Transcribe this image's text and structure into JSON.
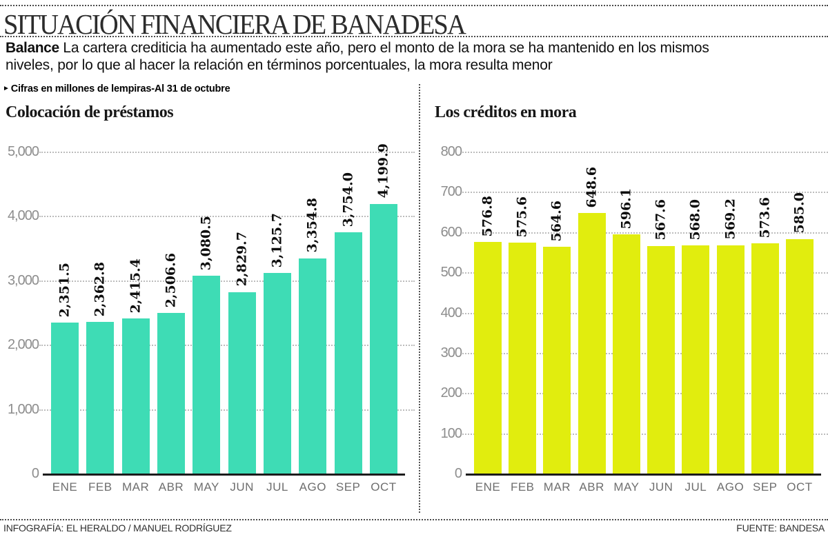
{
  "header": {
    "title": "SITUACIÓN FINANCIERA DE BANADESA",
    "lead_label": "Balance",
    "lead_text": "La cartera crediticia ha aumentado este año, pero el monto de la mora se ha mantenido en los mismos niveles, por lo que al hacer la relación en términos porcentuales, la mora resulta menor",
    "bullet_arrow": "►",
    "note": "Cifras en millones de lempiras-Al 31 de octubre"
  },
  "chart_data": [
    {
      "type": "bar",
      "title": "Colocación de préstamos",
      "categories": [
        "ENE",
        "FEB",
        "MAR",
        "ABR",
        "MAY",
        "JUN",
        "JUL",
        "AGO",
        "SEP",
        "OCT"
      ],
      "values": [
        2351.5,
        2362.8,
        2415.4,
        2506.6,
        3080.5,
        2829.7,
        3125.7,
        3354.8,
        3754.0,
        4199.9
      ],
      "labels": [
        "2,351.5",
        "2,362.8",
        "2,415.4",
        "2,506.6",
        "3,080.5",
        "2,829.7",
        "3,125.7",
        "3,354.8",
        "3,754.0",
        "4,199.9"
      ],
      "ylim": [
        0,
        5000
      ],
      "yticks": [
        0,
        1000,
        2000,
        3000,
        4000,
        5000
      ],
      "ytick_labels": [
        "0",
        "1,000",
        "2,000",
        "3,000",
        "4,000",
        "5,000"
      ],
      "bar_color": "#3EDCB5",
      "grid": true,
      "legend": "none"
    },
    {
      "type": "bar",
      "title": "Los créditos en mora",
      "categories": [
        "ENE",
        "FEB",
        "MAR",
        "ABR",
        "MAY",
        "JUN",
        "JUL",
        "AGO",
        "SEP",
        "OCT"
      ],
      "values": [
        576.8,
        575.6,
        564.6,
        648.6,
        596.1,
        567.6,
        568.0,
        569.2,
        573.6,
        585.0
      ],
      "labels": [
        "576.8",
        "575.6",
        "564.6",
        "648.6",
        "596.1",
        "567.6",
        "568.0",
        "569.2",
        "573.6",
        "585.0"
      ],
      "ylim": [
        0,
        800
      ],
      "yticks": [
        0,
        100,
        200,
        300,
        400,
        500,
        600,
        700,
        800
      ],
      "ytick_labels": [
        "0",
        "100",
        "200",
        "300",
        "400",
        "500",
        "600",
        "700",
        "800"
      ],
      "bar_color": "#E1ED0E",
      "grid": true,
      "legend": "none"
    }
  ],
  "footer": {
    "credit": "INFOGRAFÍA: EL HERALDO / MANUEL RODRÍGUEZ",
    "source": "FUENTE: BANDESA"
  },
  "colors": {
    "loans_bar": "#3EDCB5",
    "arrears_bar": "#E1ED0E",
    "baseline": "#1b1b1b",
    "grid_dots": "#bcbcbc"
  }
}
